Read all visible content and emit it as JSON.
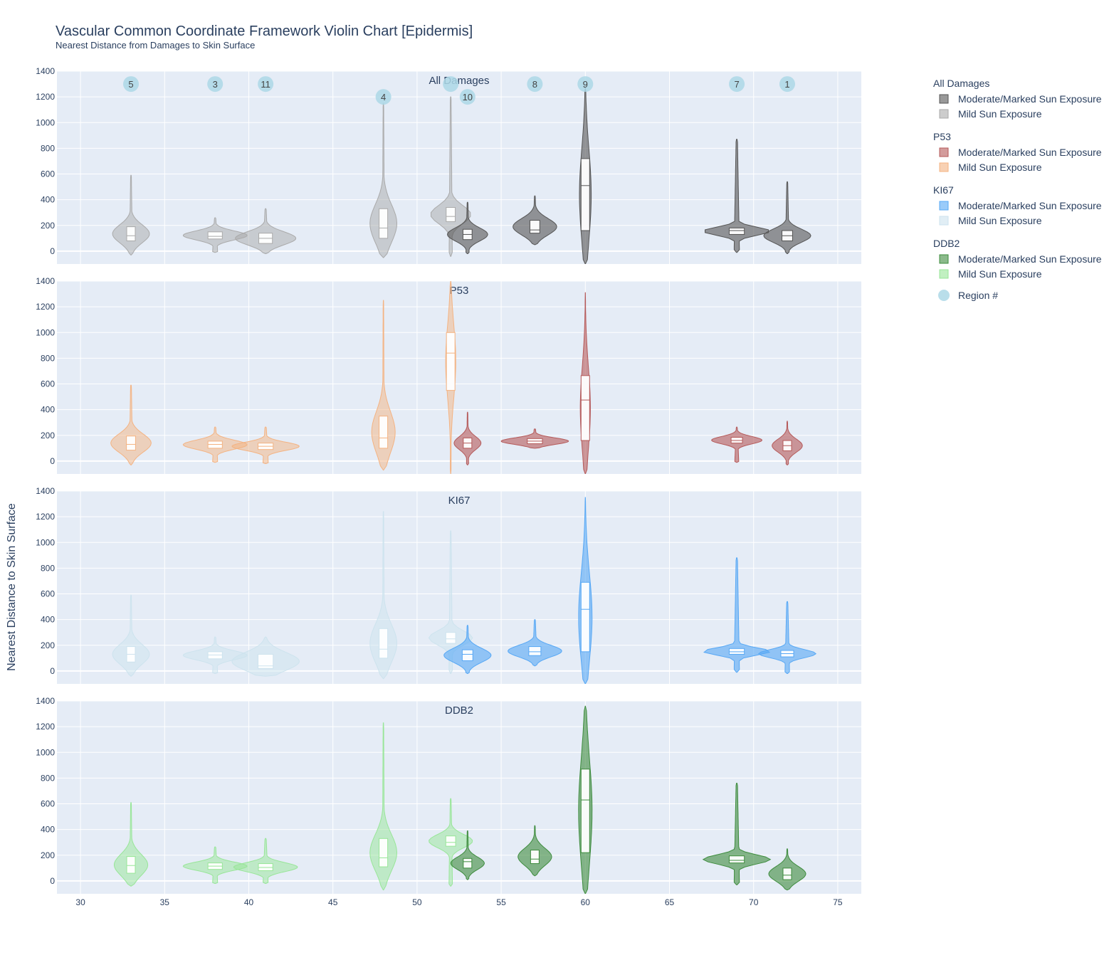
{
  "chart_data": {
    "type": "violin",
    "title": "Vascular Common Coordinate Framework Violin Chart [Epidermis]",
    "subtitle": "Nearest Distance from Damages to Skin Surface",
    "ylabel": "Nearest Distance to Skin Surface",
    "xlim": [
      28.6,
      76.4
    ],
    "ylim": [
      -100,
      1400
    ],
    "x_ticks": [
      30,
      35,
      40,
      45,
      50,
      55,
      60,
      65,
      70,
      75
    ],
    "y_ticks": [
      0,
      200,
      400,
      600,
      800,
      1000,
      1200,
      1400
    ],
    "grid": true,
    "legend_position": "right",
    "colors": {
      "plot_bg": "#e5ecf6",
      "grid": "#ffffff",
      "text": "#2a3f5f",
      "all_marked": "#555555",
      "all_mild": "#aaaaaa",
      "p53_marked": "#b55a5a",
      "p53_mild": "#f4b382",
      "ki67_marked": "#57a8f5",
      "ki67_mild": "#cde3ee",
      "ddb2_marked": "#3e8c3e",
      "ddb2_mild": "#98e698",
      "region": "#add8e6"
    },
    "legend": [
      {
        "group": "All Damages",
        "items": [
          {
            "label": "Moderate/Marked Sun Exposure",
            "color": "#555555"
          },
          {
            "label": "Mild Sun Exposure",
            "color": "#aaaaaa"
          }
        ]
      },
      {
        "group": "P53",
        "items": [
          {
            "label": "Moderate/Marked Sun Exposure",
            "color": "#b55a5a"
          },
          {
            "label": "Mild Sun Exposure",
            "color": "#f4b382"
          }
        ]
      },
      {
        "group": "KI67",
        "items": [
          {
            "label": "Moderate/Marked Sun Exposure",
            "color": "#57a8f5"
          },
          {
            "label": "Mild Sun Exposure",
            "color": "#cde3ee"
          }
        ]
      },
      {
        "group": "DDB2",
        "items": [
          {
            "label": "Moderate/Marked Sun Exposure",
            "color": "#3e8c3e"
          },
          {
            "label": "Mild Sun Exposure",
            "color": "#98e698"
          }
        ]
      }
    ],
    "region_legend_label": "Region #",
    "regions": [
      {
        "label": "5",
        "x": 33,
        "y": 1300
      },
      {
        "label": "3",
        "x": 38,
        "y": 1300
      },
      {
        "label": "11",
        "x": 41,
        "y": 1300
      },
      {
        "label": "4",
        "x": 48,
        "y": 1200
      },
      {
        "label": "",
        "x": 52,
        "y": 1300
      },
      {
        "label": "10",
        "x": 53,
        "y": 1200
      },
      {
        "label": "8",
        "x": 57,
        "y": 1300
      },
      {
        "label": "9",
        "x": 60,
        "y": 1300
      },
      {
        "label": "7",
        "x": 69,
        "y": 1300
      },
      {
        "label": "1",
        "x": 72,
        "y": 1300
      }
    ],
    "panels": [
      {
        "title": "All Damages",
        "violins": [
          {
            "x": 33,
            "exposure": "mild",
            "min": -30,
            "q1": 80,
            "median": 120,
            "q3": 190,
            "max": 590,
            "halfwidth": 1.1
          },
          {
            "x": 38,
            "exposure": "mild",
            "min": -10,
            "q1": 95,
            "median": 115,
            "q3": 150,
            "max": 260,
            "halfwidth": 1.9
          },
          {
            "x": 41,
            "exposure": "mild",
            "min": -20,
            "q1": 60,
            "median": 100,
            "q3": 140,
            "max": 330,
            "halfwidth": 1.8
          },
          {
            "x": 48,
            "exposure": "mild",
            "min": -50,
            "q1": 100,
            "median": 180,
            "q3": 330,
            "max": 1150,
            "halfwidth": 0.8
          },
          {
            "x": 52,
            "exposure": "mild",
            "min": -40,
            "q1": 230,
            "median": 270,
            "q3": 340,
            "max": 1200,
            "halfwidth": 1.2
          },
          {
            "x": 53,
            "exposure": "marked",
            "min": -20,
            "q1": 90,
            "median": 130,
            "q3": 170,
            "max": 380,
            "halfwidth": 1.2
          },
          {
            "x": 57,
            "exposure": "marked",
            "min": 50,
            "q1": 140,
            "median": 165,
            "q3": 240,
            "max": 430,
            "halfwidth": 1.3
          },
          {
            "x": 60,
            "exposure": "marked",
            "min": -100,
            "q1": 160,
            "median": 510,
            "q3": 720,
            "max": 1270,
            "halfwidth": 0.35
          },
          {
            "x": 69,
            "exposure": "marked",
            "min": -10,
            "q1": 130,
            "median": 160,
            "q3": 180,
            "max": 870,
            "halfwidth": 2.0
          },
          {
            "x": 72,
            "exposure": "marked",
            "min": -20,
            "q1": 80,
            "median": 120,
            "q3": 160,
            "max": 540,
            "halfwidth": 1.4
          }
        ]
      },
      {
        "title": "P53",
        "violins": [
          {
            "x": 33,
            "exposure": "mild",
            "min": -30,
            "q1": 85,
            "median": 130,
            "q3": 195,
            "max": 590,
            "halfwidth": 1.2
          },
          {
            "x": 38,
            "exposure": "mild",
            "min": -10,
            "q1": 100,
            "median": 130,
            "q3": 155,
            "max": 265,
            "halfwidth": 1.9
          },
          {
            "x": 41,
            "exposure": "mild",
            "min": -20,
            "q1": 90,
            "median": 115,
            "q3": 140,
            "max": 265,
            "halfwidth": 2.0
          },
          {
            "x": 48,
            "exposure": "mild",
            "min": -70,
            "q1": 100,
            "median": 180,
            "q3": 350,
            "max": 1250,
            "halfwidth": 0.7
          },
          {
            "x": 52,
            "exposure": "mild",
            "min": -100,
            "q1": 550,
            "median": 840,
            "q3": 1000,
            "max": 1400,
            "halfwidth": 0.3
          },
          {
            "x": 53,
            "exposure": "marked",
            "min": -30,
            "q1": 100,
            "median": 140,
            "q3": 180,
            "max": 380,
            "halfwidth": 0.8
          },
          {
            "x": 57,
            "exposure": "marked",
            "min": 100,
            "q1": 135,
            "median": 155,
            "q3": 175,
            "max": 250,
            "halfwidth": 2.0
          },
          {
            "x": 60,
            "exposure": "marked",
            "min": -100,
            "q1": 160,
            "median": 475,
            "q3": 665,
            "max": 1310,
            "halfwidth": 0.3
          },
          {
            "x": 69,
            "exposure": "marked",
            "min": -10,
            "q1": 140,
            "median": 160,
            "q3": 185,
            "max": 265,
            "halfwidth": 1.5
          },
          {
            "x": 72,
            "exposure": "marked",
            "min": -30,
            "q1": 80,
            "median": 120,
            "q3": 160,
            "max": 310,
            "halfwidth": 0.9
          }
        ]
      },
      {
        "title": "KI67",
        "violins": [
          {
            "x": 33,
            "exposure": "mild",
            "min": -40,
            "q1": 70,
            "median": 130,
            "q3": 190,
            "max": 590,
            "halfwidth": 1.1
          },
          {
            "x": 38,
            "exposure": "mild",
            "min": -20,
            "q1": 95,
            "median": 125,
            "q3": 150,
            "max": 265,
            "halfwidth": 1.9
          },
          {
            "x": 41,
            "exposure": "mild",
            "min": -40,
            "q1": 20,
            "median": 40,
            "q3": 130,
            "max": 265,
            "halfwidth": 2.0
          },
          {
            "x": 48,
            "exposure": "mild",
            "min": -60,
            "q1": 100,
            "median": 170,
            "q3": 330,
            "max": 1240,
            "halfwidth": 0.8
          },
          {
            "x": 52,
            "exposure": "mild",
            "min": -20,
            "q1": 215,
            "median": 250,
            "q3": 300,
            "max": 1090,
            "halfwidth": 1.3
          },
          {
            "x": 53,
            "exposure": "marked",
            "min": -20,
            "q1": 80,
            "median": 130,
            "q3": 165,
            "max": 355,
            "halfwidth": 1.4
          },
          {
            "x": 57,
            "exposure": "marked",
            "min": 40,
            "q1": 120,
            "median": 150,
            "q3": 190,
            "max": 400,
            "halfwidth": 1.6
          },
          {
            "x": 60,
            "exposure": "marked",
            "min": -100,
            "q1": 150,
            "median": 480,
            "q3": 690,
            "max": 1350,
            "halfwidth": 0.4
          },
          {
            "x": 69,
            "exposure": "marked",
            "min": -10,
            "q1": 130,
            "median": 150,
            "q3": 175,
            "max": 880,
            "halfwidth": 2.0
          },
          {
            "x": 72,
            "exposure": "marked",
            "min": -20,
            "q1": 110,
            "median": 135,
            "q3": 160,
            "max": 540,
            "halfwidth": 1.7
          }
        ]
      },
      {
        "title": "DDB2",
        "violins": [
          {
            "x": 33,
            "exposure": "mild",
            "min": -40,
            "q1": 60,
            "median": 120,
            "q3": 190,
            "max": 610,
            "halfwidth": 1.0
          },
          {
            "x": 38,
            "exposure": "mild",
            "min": -20,
            "q1": 90,
            "median": 115,
            "q3": 140,
            "max": 265,
            "halfwidth": 1.9
          },
          {
            "x": 41,
            "exposure": "mild",
            "min": -20,
            "q1": 80,
            "median": 105,
            "q3": 135,
            "max": 330,
            "halfwidth": 1.9
          },
          {
            "x": 48,
            "exposure": "mild",
            "min": -70,
            "q1": 110,
            "median": 180,
            "q3": 330,
            "max": 1230,
            "halfwidth": 0.8
          },
          {
            "x": 52,
            "exposure": "mild",
            "min": -40,
            "q1": 270,
            "median": 300,
            "q3": 350,
            "max": 640,
            "halfwidth": 1.3
          },
          {
            "x": 53,
            "exposure": "marked",
            "min": 10,
            "q1": 100,
            "median": 150,
            "q3": 175,
            "max": 390,
            "halfwidth": 1.0
          },
          {
            "x": 57,
            "exposure": "marked",
            "min": 40,
            "q1": 135,
            "median": 170,
            "q3": 240,
            "max": 430,
            "halfwidth": 1.0
          },
          {
            "x": 60,
            "exposure": "marked",
            "min": -100,
            "q1": 220,
            "median": 630,
            "q3": 870,
            "max": 1360,
            "halfwidth": 0.4
          },
          {
            "x": 69,
            "exposure": "marked",
            "min": -30,
            "q1": 140,
            "median": 160,
            "q3": 195,
            "max": 760,
            "halfwidth": 2.0
          },
          {
            "x": 72,
            "exposure": "marked",
            "min": -70,
            "q1": 10,
            "median": 45,
            "q3": 100,
            "max": 250,
            "halfwidth": 1.1
          }
        ]
      }
    ]
  }
}
